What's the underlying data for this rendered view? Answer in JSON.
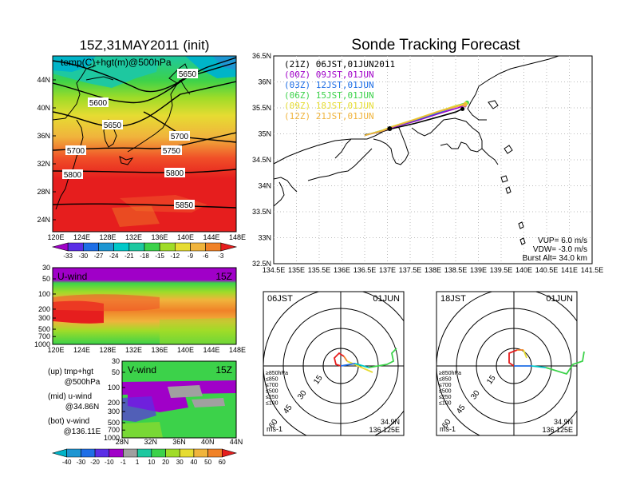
{
  "colors": {
    "purple": "#a000c8",
    "blue_violet": "#5a2ee6",
    "blue": "#1e6ee6",
    "cyan": "#00c8c8",
    "teal": "#1ec8a0",
    "green": "#3cd24a",
    "yellow_green": "#a0dc28",
    "yellow": "#e6dc32",
    "orange_yellow": "#f0b43c",
    "orange": "#f08228",
    "red_orange": "#f05028",
    "red": "#e61e1e",
    "grey": "#a0a0a0"
  },
  "left": {
    "main_title": "15Z,31MAY2011 (init)",
    "map_label": "temp(C)+hgt(m)@500hPa",
    "lat_ticks": [
      "44N",
      "40N",
      "36N",
      "32N",
      "28N",
      "24N"
    ],
    "lon_ticks": [
      "120E",
      "124E",
      "128E",
      "132E",
      "136E",
      "140E",
      "144E",
      "148E"
    ],
    "contour_labels": [
      "5650",
      "5600",
      "5650",
      "5700",
      "5750",
      "5700",
      "5800",
      "5800",
      "5850"
    ],
    "colorbar_ticks": [
      "-33",
      "-30",
      "-27",
      "-24",
      "-21",
      "-18",
      "-15",
      "-12",
      "-9",
      "-6",
      "-3"
    ],
    "uwind": {
      "label": "U-wind",
      "time": "15Z",
      "p_ticks": [
        "30",
        "50",
        "100",
        "200",
        "300",
        "500",
        "700",
        "1000"
      ],
      "lon_ticks": [
        "120E",
        "124E",
        "128E",
        "132E",
        "136E",
        "140E",
        "144E",
        "148E"
      ]
    },
    "vwind": {
      "label": "V-wind",
      "time": "15Z",
      "p_ticks": [
        "30",
        "50",
        "100",
        "200",
        "300",
        "500",
        "700",
        "1000"
      ],
      "lat_ticks": [
        "28N",
        "32N",
        "36N",
        "40N",
        "44N"
      ]
    },
    "notes": [
      {
        "head": "(up) tmp+hgt",
        "sub": "@500hPa"
      },
      {
        "head": "(mid) u-wind",
        "sub": "@34.86N"
      },
      {
        "head": "(bot) v-wind",
        "sub": "@136.11E"
      }
    ],
    "wind_colorbar_ticks": [
      "-40",
      "-30",
      "-20",
      "-10",
      "-1",
      "1",
      "10",
      "20",
      "30",
      "40",
      "50",
      "60"
    ]
  },
  "right": {
    "title": "Sonde Tracking Forecast",
    "lat_ticks": [
      "36.5N",
      "36N",
      "35.5N",
      "35N",
      "34.5N",
      "34N",
      "33.5N",
      "33N",
      "32.5N"
    ],
    "lon_ticks": [
      "134.5E",
      "135E",
      "135.5E",
      "136E",
      "136.5E",
      "137E",
      "137.5E",
      "138E",
      "138.5E",
      "139E",
      "139.5E",
      "140E",
      "140.5E",
      "141E",
      "141.5E"
    ],
    "legend": [
      {
        "text": "(21Z)  06JST,01JUN2011",
        "color": "#000000"
      },
      {
        "text": "(00Z)  09JST,01JUN",
        "color": "#a000c8"
      },
      {
        "text": "(03Z)  12JST,01JUN",
        "color": "#1e6ee6"
      },
      {
        "text": "(06Z)  15JST,01JUN",
        "color": "#3cd24a"
      },
      {
        "text": "(09Z)  18JST,01JUN",
        "color": "#e6dc32"
      },
      {
        "text": "(12Z)  21JST,01JUN",
        "color": "#f0b43c"
      }
    ],
    "params": [
      "VUP=  6.0  m/s",
      "VDW= -3.0  m/s",
      "Burst Alt=  34.0  km"
    ]
  },
  "hodographs": [
    {
      "time": "06JST",
      "date": "01JUN",
      "lat": "34.9N",
      "lon": "136.125E",
      "unit": "ms-1"
    },
    {
      "time": "18JST",
      "date": "01JUN",
      "lat": "34.9N",
      "lon": "136.125E",
      "unit": "ms-1"
    }
  ],
  "hodo_rings": [
    "15",
    "30",
    "45",
    "60"
  ],
  "hodo_legend": [
    "≥850hPa",
    "≤850",
    "≤700",
    "≤500",
    "≤250",
    "≤100"
  ],
  "chart_data": [
    {
      "type": "heatmap",
      "title": "15Z,31MAY2011 (init)",
      "label": "temp(C)+hgt(m)@500hPa",
      "x_range": [
        "120E",
        "148E"
      ],
      "y_range": [
        "24N",
        "44N"
      ],
      "colorbar": [
        -33,
        -30,
        -27,
        -24,
        -21,
        -18,
        -15,
        -12,
        -9,
        -6,
        -3
      ],
      "contours": [
        5600,
        5650,
        5700,
        5750,
        5800,
        5850
      ]
    },
    {
      "type": "heatmap",
      "label": "U-wind",
      "time": "15Z",
      "x_range": [
        "120E",
        "148E"
      ],
      "y_levels_hPa": [
        30,
        50,
        100,
        200,
        300,
        500,
        700,
        1000
      ]
    },
    {
      "type": "heatmap",
      "label": "V-wind",
      "time": "15Z",
      "x_range": [
        "28N",
        "44N"
      ],
      "y_levels_hPa": [
        30,
        50,
        100,
        200,
        300,
        500,
        700,
        1000
      ],
      "colorbar": [
        -40,
        -30,
        -20,
        -10,
        -1,
        1,
        10,
        20,
        30,
        40,
        50,
        60
      ]
    },
    {
      "type": "line",
      "title": "Sonde Tracking Forecast",
      "xlim": [
        134.5,
        141.5
      ],
      "ylim": [
        32.5,
        36.5
      ],
      "series": [
        {
          "name": "(21Z) 06JST,01JUN2011",
          "x": [
            136.5,
            136.9,
            137.1,
            137.6,
            138.1,
            138.5,
            138.65
          ],
          "y": [
            34.98,
            35.05,
            35.1,
            35.2,
            35.32,
            35.42,
            35.48
          ]
        },
        {
          "name": "(00Z) 09JST,01JUN",
          "x": [
            136.5,
            136.9,
            137.1,
            137.6,
            138.1,
            138.55,
            138.7
          ],
          "y": [
            34.97,
            35.06,
            35.12,
            35.24,
            35.38,
            35.5,
            35.55
          ]
        },
        {
          "name": "(03Z) 12JST,01JUN",
          "x": [
            136.5,
            136.9,
            137.1,
            137.6,
            138.1,
            138.5,
            138.72
          ],
          "y": [
            34.97,
            35.07,
            35.13,
            35.26,
            35.4,
            35.52,
            35.58
          ]
        },
        {
          "name": "(06Z) 15JST,01JUN",
          "x": [
            136.5,
            136.9,
            137.1,
            137.6,
            138.1,
            138.5,
            138.75
          ],
          "y": [
            34.97,
            35.07,
            35.14,
            35.27,
            35.42,
            35.54,
            35.6
          ]
        },
        {
          "name": "(09Z) 18JST,01JUN",
          "x": [
            136.5,
            136.9,
            137.1,
            137.6,
            138.1,
            138.5,
            138.72
          ],
          "y": [
            34.97,
            35.07,
            35.14,
            35.28,
            35.43,
            35.54,
            35.58
          ]
        },
        {
          "name": "(12Z) 21JST,01JUN",
          "x": [
            136.5,
            136.9,
            137.1,
            137.6,
            138.1,
            138.5,
            138.7
          ],
          "y": [
            34.97,
            35.06,
            35.13,
            35.27,
            35.42,
            35.52,
            35.56
          ]
        }
      ]
    }
  ]
}
